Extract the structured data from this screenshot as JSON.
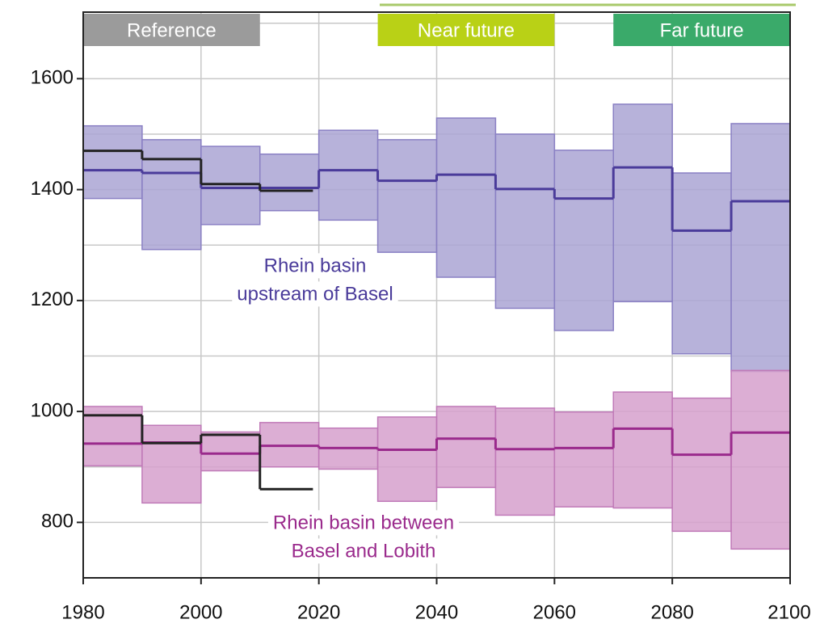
{
  "chart_data": {
    "type": "step-band",
    "bins": [
      1980,
      1990,
      2000,
      2010,
      2020,
      2030,
      2040,
      2050,
      2060,
      2070,
      2080,
      2090,
      2100
    ],
    "bands": [
      {
        "color": "#aaa4d4",
        "edge_color": "#8a80c4",
        "median_color": "#4a3b9a",
        "min": [
          1384,
          1292,
          1337,
          1362,
          1345,
          1287,
          1242,
          1186,
          1146,
          1198,
          1104,
          1072
        ],
        "max": [
          1515,
          1490,
          1478,
          1464,
          1507,
          1490,
          1529,
          1500,
          1471,
          1554,
          1430,
          1519
        ],
        "median": [
          1435,
          1430,
          1403,
          1403,
          1435,
          1416,
          1427,
          1401,
          1384,
          1440,
          1326,
          1379
        ]
      },
      {
        "color": "#d6a0cd",
        "edge_color": "#c07ab8",
        "median_color": "#9a2a8c",
        "min": [
          902,
          835,
          893,
          900,
          896,
          838,
          863,
          813,
          828,
          826,
          784,
          752
        ],
        "max": [
          1009,
          975,
          963,
          980,
          970,
          990,
          1009,
          1006,
          999,
          1035,
          1024,
          1074
        ],
        "median": [
          942,
          944,
          924,
          938,
          934,
          931,
          951,
          932,
          934,
          969,
          922,
          962
        ]
      }
    ],
    "observed": {
      "color": "#222222",
      "x": [
        1980,
        1990,
        2000,
        2010,
        2019
      ],
      "series": [
        [
          1470,
          1455,
          1410,
          1398
        ],
        [
          993,
          943,
          958,
          860
        ]
      ]
    },
    "periods": [
      {
        "label": "Reference",
        "start": 1980,
        "end": 2010,
        "color": "#9b9b9b"
      },
      {
        "label": "Near future",
        "start": 2030,
        "end": 2060,
        "color": "#b9d116"
      },
      {
        "label": "Far future",
        "start": 2070,
        "end": 2100,
        "color": "#3aaa6a"
      }
    ],
    "annotations": [
      [
        "Rhein basin",
        "upstream of Basel"
      ],
      [
        "Rhein basin between",
        "Basel and Lobith"
      ]
    ],
    "xlim": [
      1980,
      2100
    ],
    "xticks": [
      1980,
      2000,
      2020,
      2040,
      2060,
      2080,
      2100
    ],
    "ylim": [
      700,
      1720
    ],
    "yticks": [
      800,
      1000,
      1200,
      1400,
      1600
    ],
    "ygrid": [
      700,
      900,
      1100,
      1300,
      1500,
      1700
    ],
    "grid": true
  }
}
